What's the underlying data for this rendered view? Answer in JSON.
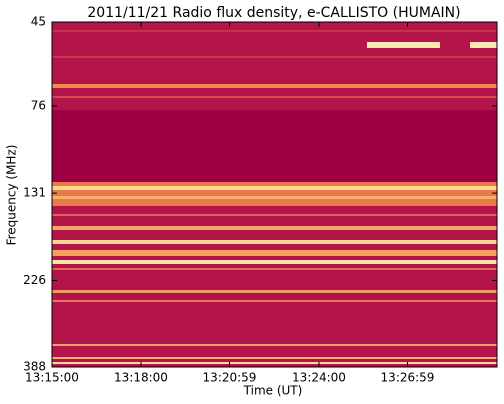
{
  "chart_data": {
    "type": "spectrogram",
    "title": "2011/11/21  Radio flux density, e-CALLISTO (HUMAIN)",
    "xlabel": "Time (UT)",
    "ylabel": "Frequency (MHz)",
    "xlim": [
      "13:15:00",
      "13:30:00"
    ],
    "xticks": [
      "13:15:00",
      "13:18:00",
      "13:20:59",
      "13:24:00",
      "13:26:59"
    ],
    "ylim": [
      45,
      388
    ],
    "yticks": [
      45,
      76,
      131,
      226,
      388
    ],
    "ylog": true,
    "yinverted": true
  }
}
